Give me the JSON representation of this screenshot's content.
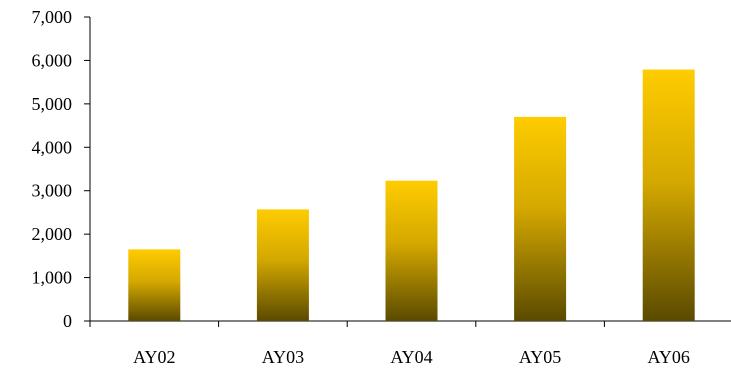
{
  "chart_data": {
    "type": "bar",
    "title": "",
    "xlabel": "",
    "ylabel": "",
    "categories": [
      "AY02",
      "AY03",
      "AY04",
      "AY05",
      "AY06"
    ],
    "values": [
      1650,
      2570,
      3230,
      4700,
      5790
    ],
    "ylim": [
      0,
      7000
    ],
    "y_ticks": [
      0,
      1000,
      2000,
      3000,
      4000,
      5000,
      6000,
      7000
    ],
    "y_tick_labels": [
      "0",
      "1,000",
      "2,000",
      "3,000",
      "4,000",
      "5,000",
      "6,000",
      "7,000"
    ],
    "grid": false,
    "legend": "none",
    "colors": {
      "bar_top": "#ffcc00",
      "bar_bottom": "#5a4a00",
      "axis": "#000000"
    }
  }
}
